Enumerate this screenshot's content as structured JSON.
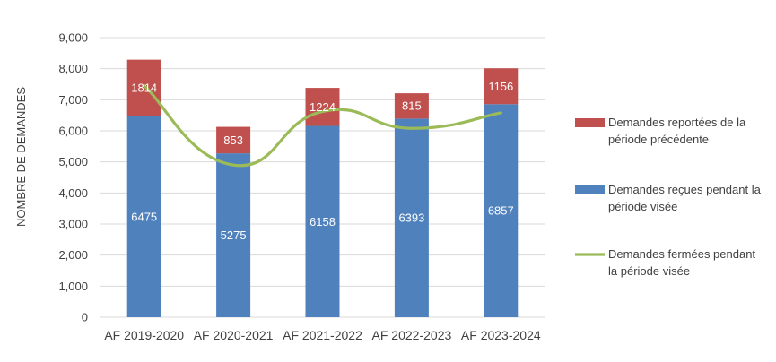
{
  "chart_data": {
    "type": "bar",
    "stacked": true,
    "title": "",
    "xlabel": "",
    "ylabel": "NOMBRE DE DEMANDES",
    "ylim": [
      0,
      9000
    ],
    "ytick_step": 1000,
    "ytick_labels": [
      "0",
      "1,000",
      "2,000",
      "3,000",
      "4,000",
      "5,000",
      "6,000",
      "7,000",
      "8,000",
      "9,000"
    ],
    "grid": true,
    "legend_position": "right",
    "categories": [
      "AF 2019-2020",
      "AF 2020-2021",
      "AF 2021-2022",
      "AF 2022-2023",
      "AF 2023-2024"
    ],
    "series": [
      {
        "name": "Demandes reçues pendant la période visée",
        "kind": "bar",
        "color": "#4f81bd",
        "values": [
          6475,
          5275,
          6158,
          6393,
          6857
        ],
        "labels": [
          "6475",
          "5275",
          "6158",
          "6393",
          "6857"
        ],
        "legend_lines": [
          "Demandes reçues pendant la",
          "période visée"
        ]
      },
      {
        "name": "Demandes reportées de la période précédente",
        "kind": "bar",
        "color": "#c0504d",
        "values": [
          1814,
          853,
          1224,
          815,
          1156
        ],
        "labels": [
          "1814",
          "853",
          "1224",
          "815",
          "1156"
        ],
        "legend_lines": [
          "Demandes reportées de la",
          "période précédente"
        ]
      },
      {
        "name": "Demandes fermées pendant la période visée",
        "kind": "line",
        "smooth": true,
        "color": "#9bbb59",
        "values": [
          7450,
          4900,
          6620,
          6080,
          6580
        ],
        "legend_lines": [
          "Demandes fermées pendant",
          "la période visée"
        ]
      }
    ],
    "legend_order": [
      1,
      0,
      2
    ]
  }
}
